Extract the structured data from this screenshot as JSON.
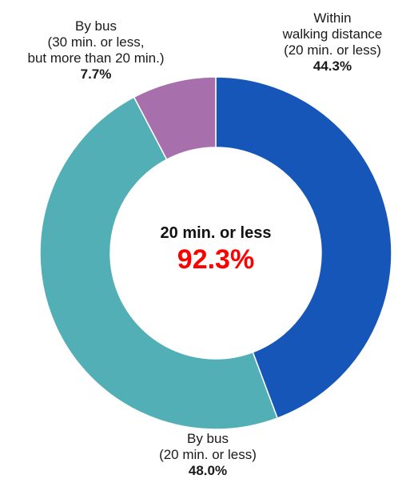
{
  "chart_data": {
    "type": "pie",
    "style": "donut",
    "slices": [
      {
        "label_lines": [
          "Within",
          "walking distance",
          "(20 min. or less)"
        ],
        "value": 44.3,
        "value_label": "44.3%",
        "color": "#1656b8"
      },
      {
        "label_lines": [
          "By bus",
          "(20 min. or less)"
        ],
        "value": 48.0,
        "value_label": "48.0%",
        "color": "#52afb5"
      },
      {
        "label_lines": [
          "By bus",
          "(30 min. or less,",
          "but more than 20 min.)"
        ],
        "value": 7.7,
        "value_label": "7.7%",
        "color": "#a76fac"
      }
    ],
    "center": {
      "title": "20 min. or less",
      "value": "92.3%",
      "value_color": "#ff0000"
    },
    "start": "top",
    "direction": "clockwise",
    "legend": "none"
  }
}
